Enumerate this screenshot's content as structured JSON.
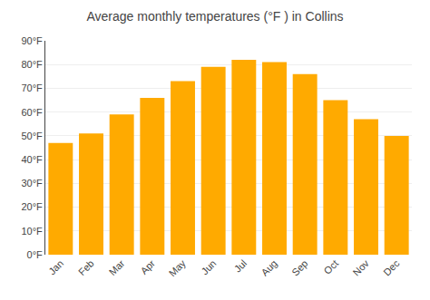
{
  "chart_data": {
    "type": "bar",
    "title": "Average monthly temperatures (°F ) in Collins",
    "categories": [
      "Jan",
      "Feb",
      "Mar",
      "Apr",
      "May",
      "Jun",
      "Jul",
      "Aug",
      "Sep",
      "Oct",
      "Nov",
      "Dec"
    ],
    "values": [
      47,
      51,
      59,
      66,
      73,
      79,
      82,
      81,
      76,
      65,
      57,
      50
    ],
    "color": "#FFAA00",
    "ylim": [
      0,
      90
    ],
    "yticks": [
      {
        "value": 0,
        "label": "0°F"
      },
      {
        "value": 10,
        "label": "10°F"
      },
      {
        "value": 20,
        "label": "20°F"
      },
      {
        "value": 30,
        "label": "30°F"
      },
      {
        "value": 40,
        "label": "40°F"
      },
      {
        "value": 50,
        "label": "50°F"
      },
      {
        "value": 60,
        "label": "60°F"
      },
      {
        "value": 70,
        "label": "70°F"
      },
      {
        "value": 80,
        "label": "80°F"
      },
      {
        "value": 90,
        "label": "90°F"
      }
    ],
    "grid": true
  }
}
